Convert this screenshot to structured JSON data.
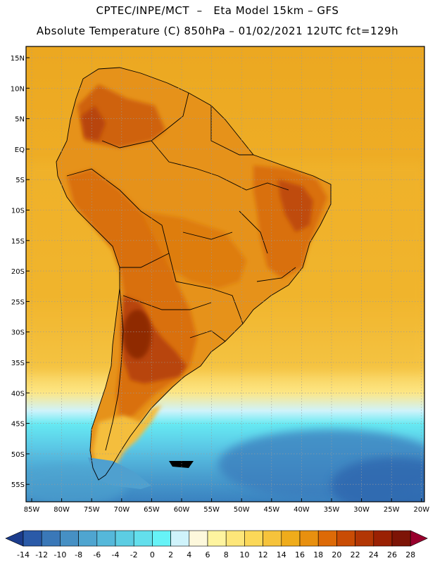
{
  "header": {
    "line1": "CPTEC/INPE/MCT  –   Eta Model 15km – GFS",
    "line2": "Absolute Temperature (C) 850hPa – 01/02/2021 12UTC fct=129h"
  },
  "lat_labels": [
    "15N",
    "10N",
    "5N",
    "EQ",
    "5S",
    "10S",
    "15S",
    "20S",
    "25S",
    "30S",
    "35S",
    "40S",
    "45S",
    "50S",
    "55S"
  ],
  "lon_labels": [
    "85W",
    "80W",
    "75W",
    "70W",
    "65W",
    "60W",
    "55W",
    "50W",
    "45W",
    "40W",
    "35W",
    "30W",
    "25W",
    "20W"
  ],
  "colorbar": {
    "labels": [
      "-14",
      "-12",
      "-10",
      "-8",
      "-6",
      "-4",
      "-2",
      "0",
      "2",
      "4",
      "6",
      "8",
      "10",
      "12",
      "14",
      "16",
      "18",
      "20",
      "22",
      "24",
      "26",
      "28"
    ],
    "colors": [
      "#1b3c8c",
      "#2a5aa8",
      "#3a78b8",
      "#4690c4",
      "#4fa5d0",
      "#55b8da",
      "#5ccde3",
      "#63dfec",
      "#66f3f7",
      "#cff3fb",
      "#fdf8dc",
      "#fef49f",
      "#fde679",
      "#fbd858",
      "#f6c33b",
      "#efac1b",
      "#e8900f",
      "#dd6a07",
      "#c94c04",
      "#b23604",
      "#9a2103",
      "#7d1406",
      "#98002d"
    ]
  },
  "colors": {
    "ocean_warm": "#eba821",
    "land_hot": "#d96a0a",
    "land_very_hot": "#b8440a",
    "land_max": "#8f2906",
    "southern_ocean": "#5bbbe0",
    "southern_deep": "#3a82c0",
    "southern_cyan": "#66e9f2",
    "transition": "#fde684"
  }
}
